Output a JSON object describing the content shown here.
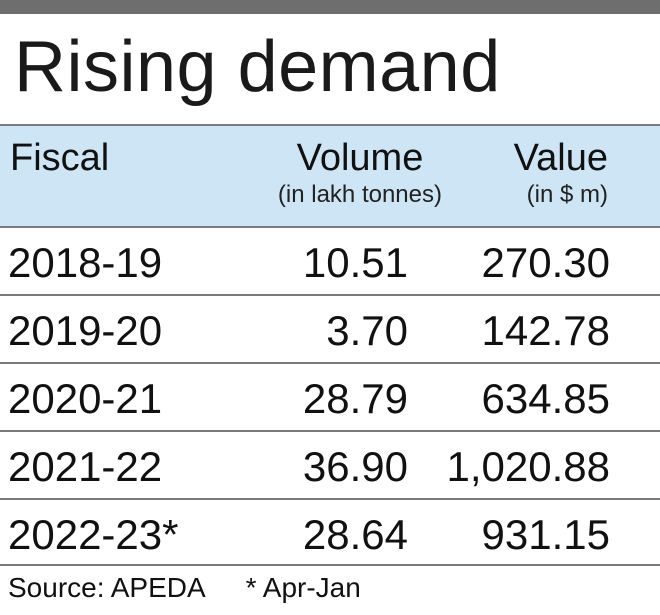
{
  "title": "Rising demand",
  "columns": [
    {
      "label": "Fiscal",
      "sub": ""
    },
    {
      "label": "Volume",
      "sub": "(in lakh tonnes)"
    },
    {
      "label": "Value",
      "sub": "(in $ m)"
    }
  ],
  "rows": [
    {
      "fiscal": "2018-19",
      "volume": "10.51",
      "value": "270.30"
    },
    {
      "fiscal": "2019-20",
      "volume": "3.70",
      "value": "142.78"
    },
    {
      "fiscal": "2020-21",
      "volume": "28.79",
      "value": "634.85"
    },
    {
      "fiscal": "2021-22",
      "volume": "36.90",
      "value": "1,020.88"
    },
    {
      "fiscal": "2022-23*",
      "volume": "28.64",
      "value": "931.15"
    }
  ],
  "footer": {
    "source": "Source: APEDA",
    "note": "* Apr-Jan"
  },
  "colors": {
    "header_band": "#cde5f4",
    "top_rule": "#6e6e6e",
    "rule": "#7a7a7a"
  },
  "chart_data": {
    "type": "table",
    "title": "Rising demand",
    "columns": [
      "Fiscal",
      "Volume (in lakh tonnes)",
      "Value (in $ m)"
    ],
    "rows": [
      [
        "2018-19",
        10.51,
        270.3
      ],
      [
        "2019-20",
        3.7,
        142.78
      ],
      [
        "2020-21",
        28.79,
        634.85
      ],
      [
        "2021-22",
        36.9,
        1020.88
      ],
      [
        "2022-23*",
        28.64,
        931.15
      ]
    ],
    "source": "Source: APEDA",
    "note": "* Apr-Jan"
  }
}
